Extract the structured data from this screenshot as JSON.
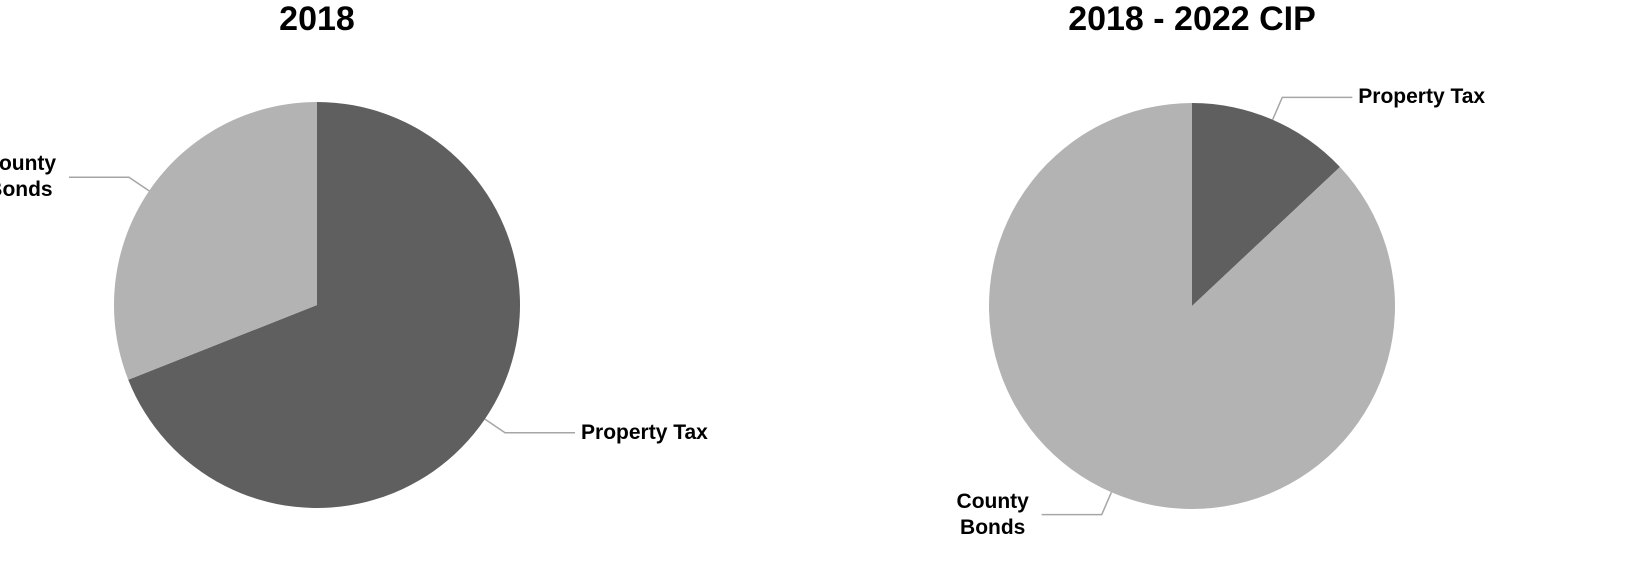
{
  "chart_data": [
    {
      "type": "pie",
      "title": "2018",
      "categories": [
        "Property Tax",
        "County Bonds"
      ],
      "values": [
        69,
        31
      ],
      "colors": [
        "#5f5f5f",
        "#b3b3b3"
      ]
    },
    {
      "type": "pie",
      "title": "2018 - 2022 CIP",
      "categories": [
        "Property Tax",
        "County Bonds"
      ],
      "values": [
        13,
        87
      ],
      "colors": [
        "#5f5f5f",
        "#b3b3b3"
      ]
    }
  ]
}
